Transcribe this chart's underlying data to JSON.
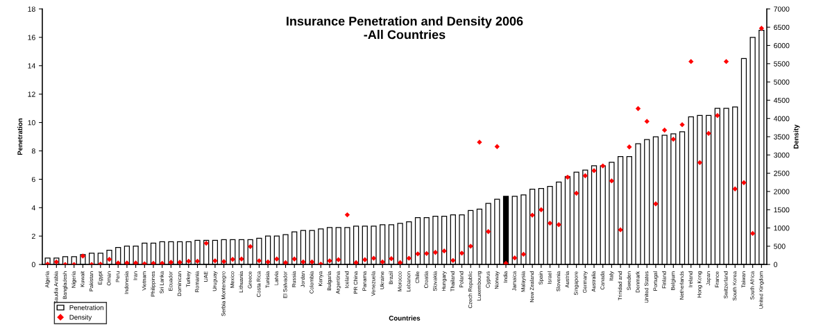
{
  "chart_data": {
    "type": "bar",
    "title": "Insurance Penetration and Density 2006\n-All Countries",
    "xlabel": "Countries",
    "ylabel": "Penetration",
    "y2label": "Density",
    "categories": [
      "Algeria",
      "Saudia Arabia",
      "Bangladesh",
      "Nigeria",
      "Kuwait",
      "Pakistan",
      "Egypt",
      "Oman",
      "Peru",
      "Indonesia",
      "Iran",
      "Vietnam",
      "Philippines",
      "Sri Lanka",
      "Ecuador",
      "Dominican",
      "Turkey",
      "Romania",
      "UAE",
      "Uruguay",
      "Serbia Montenegro",
      "Mexico",
      "Lithuania",
      "Greece",
      "Costa Rica",
      "Tunisia",
      "Latvia",
      "El Salvador",
      "Russia",
      "Jordan",
      "Colombia",
      "Kenya",
      "Bulgaria",
      "Argentina",
      "Iceland",
      "PR China",
      "Panama",
      "Venezuela",
      "Ukraine",
      "Brazil",
      "Morocco",
      "Lebanon",
      "Chile",
      "Croatia",
      "Slovakia",
      "Hungary",
      "Thailand",
      "Poland",
      "Czech Republic",
      "Luxembourg",
      "Cyprus",
      "Norway",
      "India",
      "Jamaica",
      "Malaysia",
      "New Zealand",
      "Spain",
      "Israel",
      "Slovenia",
      "Austria",
      "Singapore",
      "Germany",
      "Australia",
      "Canada",
      "Italy",
      "Trinidad and",
      "Sweden",
      "Denmark",
      "United States",
      "Portugal",
      "Finland",
      "Belgium",
      "Netherlands",
      "Ireland",
      "Hong Kong",
      "Japan",
      "France",
      "Switzerland",
      "South Korea",
      "Taiwan",
      "South Africa",
      "United Kingdom"
    ],
    "series": [
      {
        "name": "Penetration",
        "colors": [
          "#ffffff",
          "#ffffff",
          "#ffffff",
          "#ffffff",
          "#ffffff",
          "#ffffff",
          "#ffffff",
          "#ffffff",
          "#ffffff",
          "#ffffff",
          "#ffffff",
          "#ffffff",
          "#ffffff",
          "#ffffff",
          "#ffffff",
          "#ffffff",
          "#ffffff",
          "#ffffff",
          "#ffffff",
          "#ffffff",
          "#ffffff",
          "#ffffff",
          "#ffffff",
          "#ffffff",
          "#ffffff",
          "#ffffff",
          "#ffffff",
          "#ffffff",
          "#ffffff",
          "#ffffff",
          "#ffffff",
          "#ffffff",
          "#ffffff",
          "#ffffff",
          "#ffffff",
          "#ffffff",
          "#ffffff",
          "#ffffff",
          "#ffffff",
          "#ffffff",
          "#ffffff",
          "#ffffff",
          "#ffffff",
          "#ffffff",
          "#ffffff",
          "#ffffff",
          "#ffffff",
          "#ffffff",
          "#ffffff",
          "#ffffff",
          "#ffffff",
          "#ffffff",
          "#000000",
          "#ffffff",
          "#ffffff",
          "#ffffff",
          "#ffffff",
          "#ffffff",
          "#ffffff",
          "#ffffff",
          "#ffffff",
          "#ffffff",
          "#ffffff",
          "#ffffff",
          "#ffffff",
          "#ffffff",
          "#ffffff",
          "#ffffff",
          "#ffffff",
          "#ffffff",
          "#ffffff",
          "#ffffff",
          "#ffffff",
          "#ffffff",
          "#ffffff",
          "#ffffff",
          "#ffffff",
          "#ffffff",
          "#ffffff",
          "#ffffff",
          "#ffffff",
          "#ffffff"
        ],
        "values": [
          0.45,
          0.45,
          0.55,
          0.55,
          0.7,
          0.8,
          0.8,
          1.0,
          1.2,
          1.3,
          1.3,
          1.5,
          1.5,
          1.6,
          1.6,
          1.6,
          1.6,
          1.7,
          1.7,
          1.7,
          1.75,
          1.75,
          1.75,
          1.75,
          1.85,
          2.0,
          2.0,
          2.1,
          2.3,
          2.4,
          2.4,
          2.5,
          2.6,
          2.6,
          2.6,
          2.7,
          2.7,
          2.7,
          2.8,
          2.8,
          2.9,
          3.0,
          3.3,
          3.3,
          3.4,
          3.4,
          3.5,
          3.5,
          3.8,
          3.9,
          4.3,
          4.6,
          4.8,
          4.8,
          4.9,
          5.3,
          5.35,
          5.5,
          5.8,
          6.2,
          6.5,
          6.65,
          6.95,
          6.95,
          7.2,
          7.6,
          7.6,
          8.5,
          8.8,
          9.0,
          9.1,
          9.2,
          9.35,
          10.4,
          10.5,
          10.5,
          11.0,
          11.0,
          11.1,
          14.5,
          16.0,
          16.5
        ]
      },
      {
        "name": "Density",
        "type": "scatter",
        "axis": "y2",
        "color": "#ff0000",
        "marker": "diamond",
        "values": [
          10,
          70,
          0,
          0,
          230,
          0,
          10,
          140,
          40,
          40,
          40,
          20,
          30,
          30,
          60,
          60,
          90,
          90,
          580,
          100,
          80,
          140,
          150,
          490,
          100,
          70,
          150,
          50,
          150,
          70,
          70,
          10,
          100,
          130,
          1360,
          50,
          130,
          170,
          70,
          160,
          50,
          170,
          290,
          300,
          330,
          370,
          110,
          310,
          500,
          3350,
          900,
          3230,
          30,
          180,
          280,
          1350,
          1500,
          1130,
          1090,
          2390,
          1950,
          2430,
          2570,
          2700,
          2290,
          950,
          3220,
          4270,
          3920,
          1660,
          3680,
          3430,
          3830,
          5560,
          2790,
          3590,
          4080,
          5560,
          2070,
          2240,
          850,
          6470
        ]
      }
    ],
    "ylim": [
      0,
      18
    ],
    "yticks": [
      0,
      2,
      4,
      6,
      8,
      10,
      12,
      14,
      16,
      18
    ],
    "y2lim": [
      0,
      7000
    ],
    "y2ticks": [
      0,
      500,
      1000,
      1500,
      2000,
      2500,
      3000,
      3500,
      4000,
      4500,
      5000,
      5500,
      6000,
      6500,
      7000
    ],
    "legend": "bottom left",
    "grid": false
  }
}
